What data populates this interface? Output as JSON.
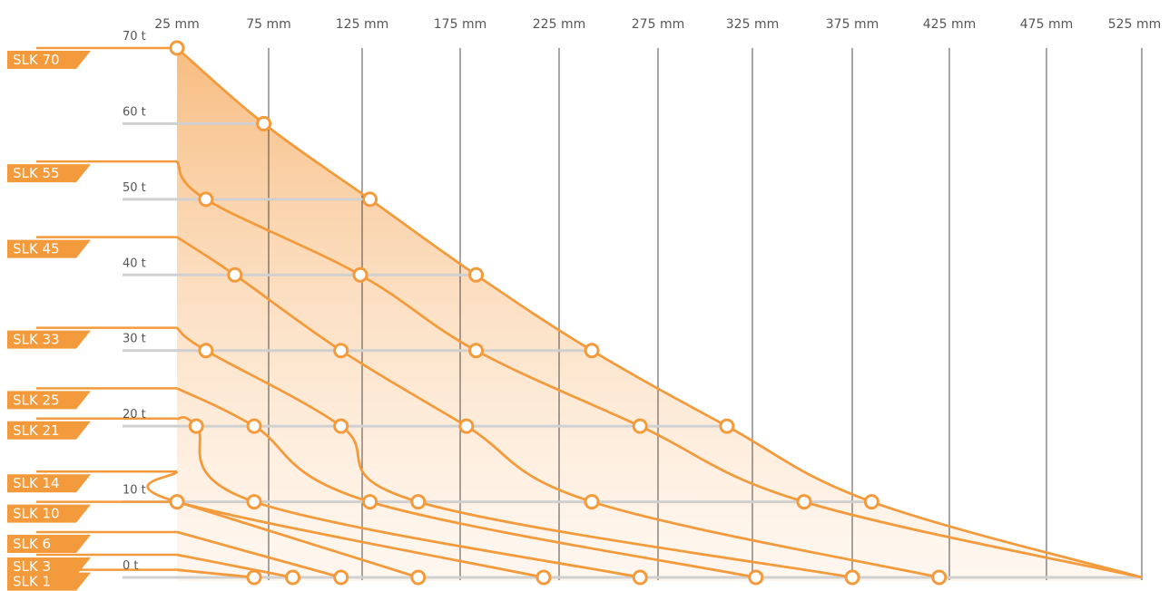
{
  "chart_data": {
    "type": "line",
    "colors": {
      "accent": "#F39B3C",
      "fill_top": "#F7B97A",
      "grid": "#222222",
      "ref_line": "#D0D0D0",
      "label_text": "#FFFFFF"
    },
    "x_ticks": [
      "25 mm",
      "75 mm",
      "125 mm",
      "175 mm",
      "225 mm",
      "275 mm",
      "325 mm",
      "375 mm",
      "425 mm",
      "475 mm",
      "525 mm"
    ],
    "y_ticks": [
      "0 t",
      "10 t",
      "20 t",
      "30 t",
      "40 t",
      "50 t",
      "60 t",
      "70 t"
    ],
    "x_range_mm": [
      25,
      525
    ],
    "y_range_t": [
      0,
      70
    ],
    "grid": "vertical",
    "legend": "left",
    "series": [
      {
        "name": "SLK 70",
        "start_t": 70,
        "points": [
          [
            25,
            70
          ],
          [
            70,
            60
          ],
          [
            125,
            50
          ],
          [
            180,
            40
          ],
          [
            240,
            30
          ],
          [
            310,
            20
          ],
          [
            385,
            10
          ],
          [
            525,
            0
          ]
        ]
      },
      {
        "name": "SLK 55",
        "start_t": 55,
        "points": [
          [
            25,
            55
          ],
          [
            40,
            50
          ],
          [
            120,
            40
          ],
          [
            180,
            30
          ],
          [
            265,
            20
          ],
          [
            350,
            10
          ],
          [
            525,
            0
          ]
        ]
      },
      {
        "name": "SLK 45",
        "start_t": 45,
        "points": [
          [
            25,
            45
          ],
          [
            55,
            40
          ],
          [
            110,
            30
          ],
          [
            175,
            20
          ],
          [
            240,
            10
          ],
          [
            420,
            0
          ]
        ]
      },
      {
        "name": "SLK 33",
        "start_t": 33,
        "points": [
          [
            25,
            33
          ],
          [
            40,
            30
          ],
          [
            110,
            20
          ],
          [
            150,
            10
          ],
          [
            375,
            0
          ]
        ]
      },
      {
        "name": "SLK 25",
        "start_t": 25,
        "points": [
          [
            25,
            25
          ],
          [
            65,
            20
          ],
          [
            125,
            10
          ],
          [
            325,
            0
          ]
        ]
      },
      {
        "name": "SLK 21",
        "start_t": 21,
        "points": [
          [
            25,
            21
          ],
          [
            35,
            20
          ],
          [
            65,
            10
          ],
          [
            265,
            0
          ]
        ]
      },
      {
        "name": "SLK 14",
        "start_t": 14,
        "points": [
          [
            25,
            14
          ],
          [
            25,
            10
          ],
          [
            215,
            0
          ]
        ]
      },
      {
        "name": "SLK 10",
        "start_t": 10,
        "points": [
          [
            25,
            10
          ],
          [
            150,
            0
          ]
        ]
      },
      {
        "name": "SLK 6",
        "start_t": 6,
        "points": [
          [
            25,
            6
          ],
          [
            110,
            0
          ]
        ]
      },
      {
        "name": "SLK 3",
        "start_t": 3,
        "points": [
          [
            25,
            3
          ],
          [
            85,
            0
          ]
        ]
      },
      {
        "name": "SLK 1",
        "start_t": 1,
        "points": [
          [
            25,
            1
          ],
          [
            65,
            0
          ]
        ]
      }
    ]
  }
}
